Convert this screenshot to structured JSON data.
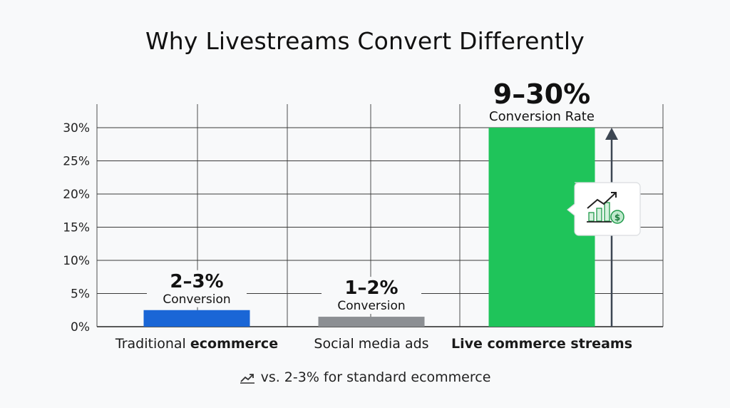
{
  "chart_data": {
    "type": "bar",
    "title": "Why Livestreams Convert Differently",
    "categories": [
      {
        "regular": "Traditional ",
        "bold": "ecommerce"
      },
      {
        "regular": "Social media ads",
        "bold": ""
      },
      {
        "regular": "",
        "bold": "Live commerce streams"
      }
    ],
    "values": [
      2.5,
      1.5,
      30
    ],
    "colors": [
      "#1a66d6",
      "#8c8f93",
      "#1fc45a"
    ],
    "value_labels": [
      {
        "value": "2–3%",
        "caption": "Conversion"
      },
      {
        "value": "1–2%",
        "caption": "Conversion"
      },
      {
        "value": "9–30%",
        "caption": "Conversion Rate"
      }
    ],
    "yticks": [
      "0%",
      "5%",
      "10%",
      "15%",
      "20%",
      "25%",
      "30%"
    ],
    "ylim": [
      0,
      30
    ],
    "grid": true,
    "footnote": "vs. 2-3% for standard ecommerce"
  }
}
